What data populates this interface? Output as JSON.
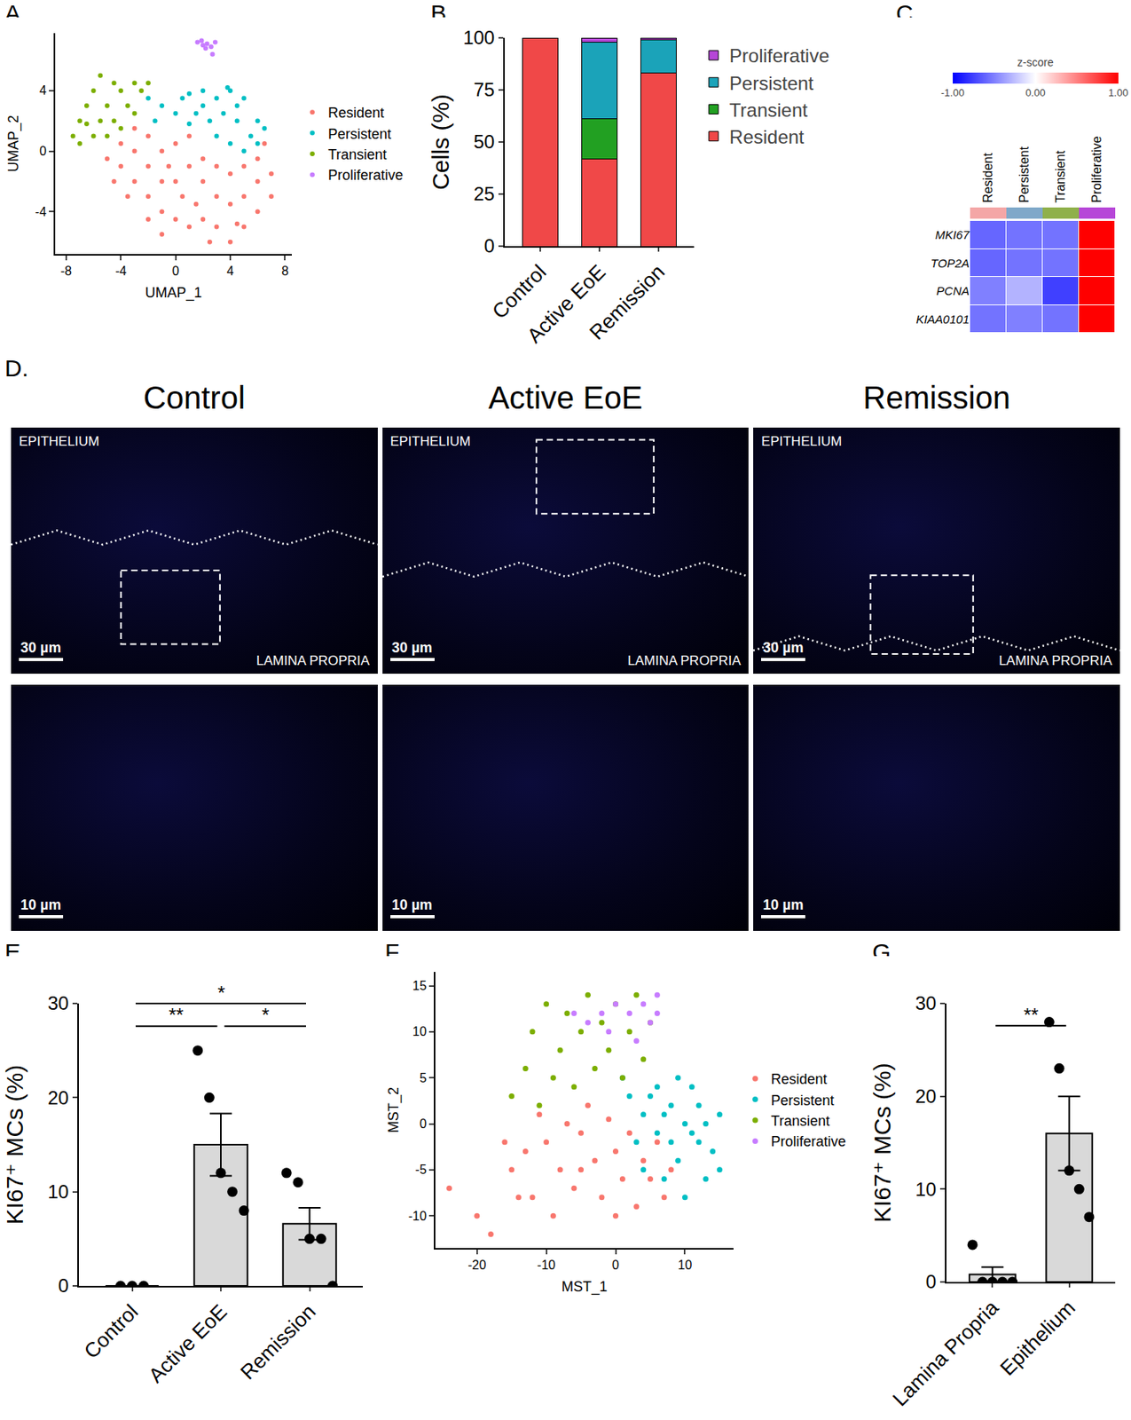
{
  "chart_data": [
    {
      "type": "scatter",
      "panel_label": "A.",
      "x_label": "UMAP_1",
      "y_label": "UMAP_2",
      "xlim": [
        -8.8,
        8.5
      ],
      "xticks": [
        -8,
        -4,
        0,
        4,
        8
      ],
      "ylim": [
        -6.8,
        7.8
      ],
      "yticks": [
        -4,
        0,
        4
      ],
      "grid": false,
      "legend": "right",
      "series": [
        {
          "name": "Resident",
          "color": "#F8766D",
          "x": [
            -4,
            -3,
            -2,
            -1,
            0,
            1,
            2,
            3,
            4,
            5,
            6,
            7,
            7,
            6,
            5,
            4,
            3,
            2,
            1,
            0,
            -1,
            -2,
            -3,
            -4,
            -3,
            -2,
            -1,
            0,
            1,
            2,
            3,
            4,
            5,
            6,
            6.5,
            -5,
            -4.5,
            -3.5,
            -2,
            0.5,
            2.5,
            -1,
            4.5,
            1.5,
            -0.5
          ],
          "y": [
            -1,
            -2,
            -3,
            -4,
            -4.5,
            -5,
            -4.5,
            -5,
            -6,
            -5,
            -4,
            -3,
            -1.5,
            -2,
            -3,
            -3.5,
            -3,
            -2,
            -1,
            -2,
            -2,
            -1,
            0,
            0.5,
            1.5,
            1,
            0,
            0.5,
            1,
            -0.5,
            -1,
            -1.5,
            -1,
            -0.5,
            0.5,
            -0.5,
            -2,
            -3,
            -4.5,
            -3,
            -6,
            -5.5,
            -4.8,
            -3.5,
            -1
          ]
        },
        {
          "name": "Persistent",
          "color": "#00BFC4",
          "x": [
            -2,
            -1,
            0,
            1,
            2,
            3,
            4,
            5,
            6,
            5.5,
            4.5,
            3.5,
            2.5,
            1.5,
            0.5,
            -1.5,
            3,
            4,
            5,
            6,
            2,
            1,
            4.5,
            3.8,
            6.5
          ],
          "y": [
            3.5,
            3,
            2.5,
            3.8,
            4,
            3.5,
            4,
            3.5,
            2,
            1,
            2,
            2.5,
            2,
            2.5,
            3.5,
            2,
            1,
            0.5,
            0,
            0.5,
            3,
            1.8,
            3,
            4.2,
            1.5
          ]
        },
        {
          "name": "Transient",
          "color": "#7CAE00",
          "x": [
            -7.5,
            -7,
            -6.5,
            -6,
            -5.5,
            -5,
            -4.5,
            -4,
            -3.5,
            -3,
            -2.5,
            -6,
            -5,
            -4,
            -7,
            -5.5,
            -3,
            -4.5,
            -6.5,
            -2
          ],
          "y": [
            1,
            2,
            3,
            4,
            5,
            3,
            2,
            1.5,
            3,
            4.5,
            4,
            1,
            1,
            4,
            0.5,
            2,
            2.5,
            4.5,
            1.8,
            4.5
          ]
        },
        {
          "name": "Proliferative",
          "color": "#C77CFF",
          "x": [
            1.6,
            2,
            2.3,
            2.6,
            2.9,
            2.2,
            2.7,
            1.9
          ],
          "y": [
            7.2,
            7,
            7.1,
            6.9,
            7.2,
            6.8,
            6.4,
            7.3
          ]
        }
      ]
    },
    {
      "type": "bar",
      "stacked": true,
      "panel_label": "B.",
      "y_label": "Cells (%)",
      "categories": [
        "Control",
        "Active EoE",
        "Remission"
      ],
      "ylim": [
        0,
        100
      ],
      "yticks": [
        0,
        25,
        50,
        75,
        100
      ],
      "grid": false,
      "legend": "upper right",
      "series": [
        {
          "name": "Resident",
          "color": "#F04848",
          "values": [
            100,
            42,
            83
          ]
        },
        {
          "name": "Transient",
          "color": "#22A022",
          "values": [
            0,
            19,
            0
          ]
        },
        {
          "name": "Persistent",
          "color": "#1BA3B9",
          "values": [
            0,
            37,
            16
          ]
        },
        {
          "name": "Proliferative",
          "color": "#B646D8",
          "values": [
            0,
            2,
            1
          ]
        }
      ]
    },
    {
      "type": "heatmap",
      "panel_label": "C.",
      "columns": [
        "Resident",
        "Persistent",
        "Transient",
        "Proliferative"
      ],
      "colors": [
        "#F4A6A6",
        "#7FA8C9",
        "#8FB04A",
        "#B646D8"
      ],
      "rows": [
        "MKI67",
        "TOP2A",
        "PCNA",
        "KIAA0101"
      ],
      "cells": [
        [
          -0.6,
          -0.55,
          -0.55,
          1
        ],
        [
          -0.6,
          -0.55,
          -0.55,
          1
        ],
        [
          -0.5,
          -0.3,
          -0.75,
          1
        ],
        [
          -0.55,
          -0.5,
          -0.55,
          1
        ]
      ],
      "colorbar": {
        "title": "z-score",
        "range": [
          -1,
          1
        ],
        "ticks": [
          {
            "value": -1,
            "label": "-1.00"
          },
          {
            "value": 0,
            "label": "0.00"
          },
          {
            "value": 1,
            "label": "1.00"
          }
        ]
      }
    },
    {
      "type": "image",
      "panel_label": "D.",
      "panels": [
        {
          "title": "Control",
          "overview_labels": [
            "EPITHELIUM",
            "LAMINA PROPRIA"
          ],
          "overview_scale": "30 µm",
          "zoom_scale": "10 µm"
        },
        {
          "title": "Active EoE",
          "overview_labels": [
            "EPITHELIUM",
            "LAMINA PROPRIA"
          ],
          "overview_scale": "30 µm",
          "zoom_scale": "10 µm"
        },
        {
          "title": "Remission",
          "overview_labels": [
            "EPITHELIUM",
            "LAMINA PROPRIA"
          ],
          "overview_scale": "30 µm",
          "zoom_scale": "10 µm"
        }
      ]
    },
    {
      "type": "bar",
      "panel_label": "E.",
      "y_label": "KI67⁺ MCs (%)",
      "categories": [
        "Control",
        "Active EoE",
        "Remission"
      ],
      "values": [
        0,
        15,
        6.6
      ],
      "error": [
        0,
        3.3,
        1.7
      ],
      "points": [
        [
          0,
          0,
          0
        ],
        [
          25,
          20,
          12,
          10,
          8
        ],
        [
          12,
          11,
          5,
          5,
          0
        ]
      ],
      "color": "#D9D9D9",
      "ylim": [
        0,
        30
      ],
      "yticks": [
        0,
        10,
        20,
        30
      ],
      "grid": false,
      "comparisons": [
        {
          "from": "Control",
          "to": "Active EoE",
          "label": "**"
        },
        {
          "from": "Active EoE",
          "to": "Remission",
          "label": "*"
        },
        {
          "from": "Control",
          "to": "Remission",
          "label": "*"
        }
      ]
    },
    {
      "type": "scatter",
      "panel_label": "F.",
      "x_label": "MST_1",
      "y_label": "MST_2",
      "xlim": [
        -26,
        17
      ],
      "xticks": [
        -20,
        -10,
        0,
        10
      ],
      "ylim": [
        -13.5,
        16.5
      ],
      "yticks": [
        -10,
        -5,
        0,
        5,
        10,
        15
      ],
      "grid": false,
      "legend": "right",
      "series": [
        {
          "name": "Resident",
          "color": "#F8766D",
          "x": [
            -20,
            -18,
            -15,
            -13,
            -12,
            -10,
            -8,
            -6,
            -5,
            -3,
            -2,
            0,
            1,
            2,
            3,
            4,
            5,
            6,
            7,
            -11,
            -7,
            -4,
            -1,
            -16,
            -9,
            -24,
            8,
            0,
            -14,
            -5
          ],
          "y": [
            -10,
            -12,
            -5,
            -3,
            -8,
            -2,
            -5,
            -7,
            -1,
            -4,
            -8,
            -3,
            -6,
            -1,
            -9,
            -4,
            -6,
            -2,
            -8,
            1,
            0,
            2,
            0.5,
            -2,
            -10,
            -7,
            -5,
            -10,
            -8,
            -5
          ]
        },
        {
          "name": "Persistent",
          "color": "#00BFC4",
          "x": [
            2,
            4,
            6,
            8,
            10,
            12,
            14,
            15,
            11,
            9,
            7,
            13,
            5,
            3,
            10,
            12,
            8,
            6,
            15,
            1,
            9,
            4,
            11,
            13,
            7
          ],
          "y": [
            3,
            1,
            -1,
            2,
            0,
            -2,
            -3,
            1,
            4,
            -4,
            -6,
            -6,
            3,
            -2,
            -8,
            2,
            -2,
            4,
            -5,
            5,
            5,
            -5,
            -1,
            0,
            1
          ]
        },
        {
          "name": "Transient",
          "color": "#7CAE00",
          "x": [
            -15,
            -13,
            -12,
            -10,
            -8,
            -7,
            -6,
            -5,
            -4,
            -3,
            -2,
            -1,
            0,
            1,
            2,
            3,
            4,
            -9,
            -11,
            5
          ],
          "y": [
            3,
            6,
            10,
            13,
            8,
            12,
            4,
            10,
            14,
            6,
            11,
            8,
            13,
            5,
            10,
            14,
            7,
            5,
            2,
            11
          ]
        },
        {
          "name": "Proliferative",
          "color": "#C77CFF",
          "x": [
            -6,
            -4,
            -2,
            0,
            2,
            4,
            5,
            6,
            -1,
            3,
            6
          ],
          "y": [
            12,
            11,
            12,
            13,
            12,
            13,
            11,
            14,
            10,
            9,
            12
          ]
        }
      ]
    },
    {
      "type": "bar",
      "panel_label": "G.",
      "y_label": "KI67⁺ MCs (%)",
      "categories": [
        "Lamina Propria",
        "Epithelium"
      ],
      "values": [
        0.8,
        16
      ],
      "error": [
        0.8,
        4
      ],
      "points": [
        [
          4,
          0,
          0,
          0,
          0
        ],
        [
          28,
          23,
          12,
          10,
          7
        ]
      ],
      "color": "#D9D9D9",
      "ylim": [
        0,
        30
      ],
      "yticks": [
        0,
        10,
        20,
        30
      ],
      "grid": false,
      "comparisons": [
        {
          "from": "Lamina Propria",
          "to": "Epithelium",
          "label": "**"
        }
      ]
    }
  ]
}
